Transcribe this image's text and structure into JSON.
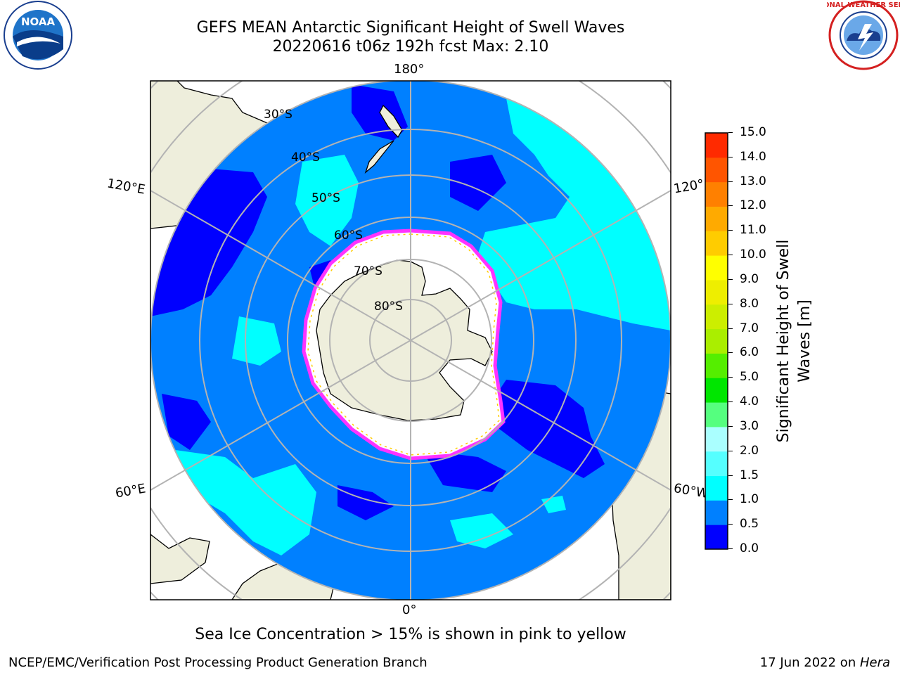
{
  "title_line1": "GEFS MEAN Antarctic Significant Height of Swell Waves",
  "title_line2": "20220616 t06z 192h fcst   Max: 2.10",
  "logos": {
    "left": "noaa-logo",
    "left_text": "NOAA",
    "right": "nws-logo",
    "right_text": "NATIONAL WEATHER SERVICE"
  },
  "map": {
    "projection": "south-polar-stereographic",
    "lon_labels": {
      "top": "180°",
      "bottom": "0°",
      "left_upper": "120°E",
      "left_lower": "60°E",
      "right_upper": "120°",
      "right_lower": "60°W"
    },
    "lat_labels": [
      "30°S",
      "40°S",
      "50°S",
      "60°S",
      "70°S",
      "80°S"
    ],
    "colors": {
      "land": "#eeeedc",
      "ice_interior": "#ffffff",
      "ice_edge": "#ff33ff",
      "ice_edge_yellow": "#ffcc00",
      "ocean_base": "#0080ff",
      "ocean_low": "#0000ff",
      "ocean_high": "#00ffff",
      "grid": "#b3b3b3"
    }
  },
  "colorbar": {
    "ticks": [
      "0.0",
      "0.5",
      "1.0",
      "1.5",
      "2.0",
      "3.0",
      "4.0",
      "5.0",
      "6.0",
      "7.0",
      "8.0",
      "9.0",
      "10.0",
      "11.0",
      "12.0",
      "13.0",
      "14.0",
      "15.0"
    ],
    "colors": [
      "#0000ff",
      "#0080ff",
      "#00ffff",
      "#55ffff",
      "#aaffff",
      "#55ff7f",
      "#00e600",
      "#55ee00",
      "#aaee00",
      "#ccee00",
      "#eeee00",
      "#ffff00",
      "#ffcc00",
      "#ffaa00",
      "#ff8000",
      "#ff5500",
      "#ff2a00",
      "#ff0000"
    ],
    "label_line1": "Significant Height of Swell",
    "label_line2": "Waves [m]"
  },
  "footer_note": "Sea Ice Concentration > 15% is shown in pink to yellow",
  "footer_left": "NCEP/EMC/Verification Post Processing Product Generation Branch",
  "footer_right_prefix": "17 Jun 2022 on ",
  "footer_right_host": "Hera"
}
